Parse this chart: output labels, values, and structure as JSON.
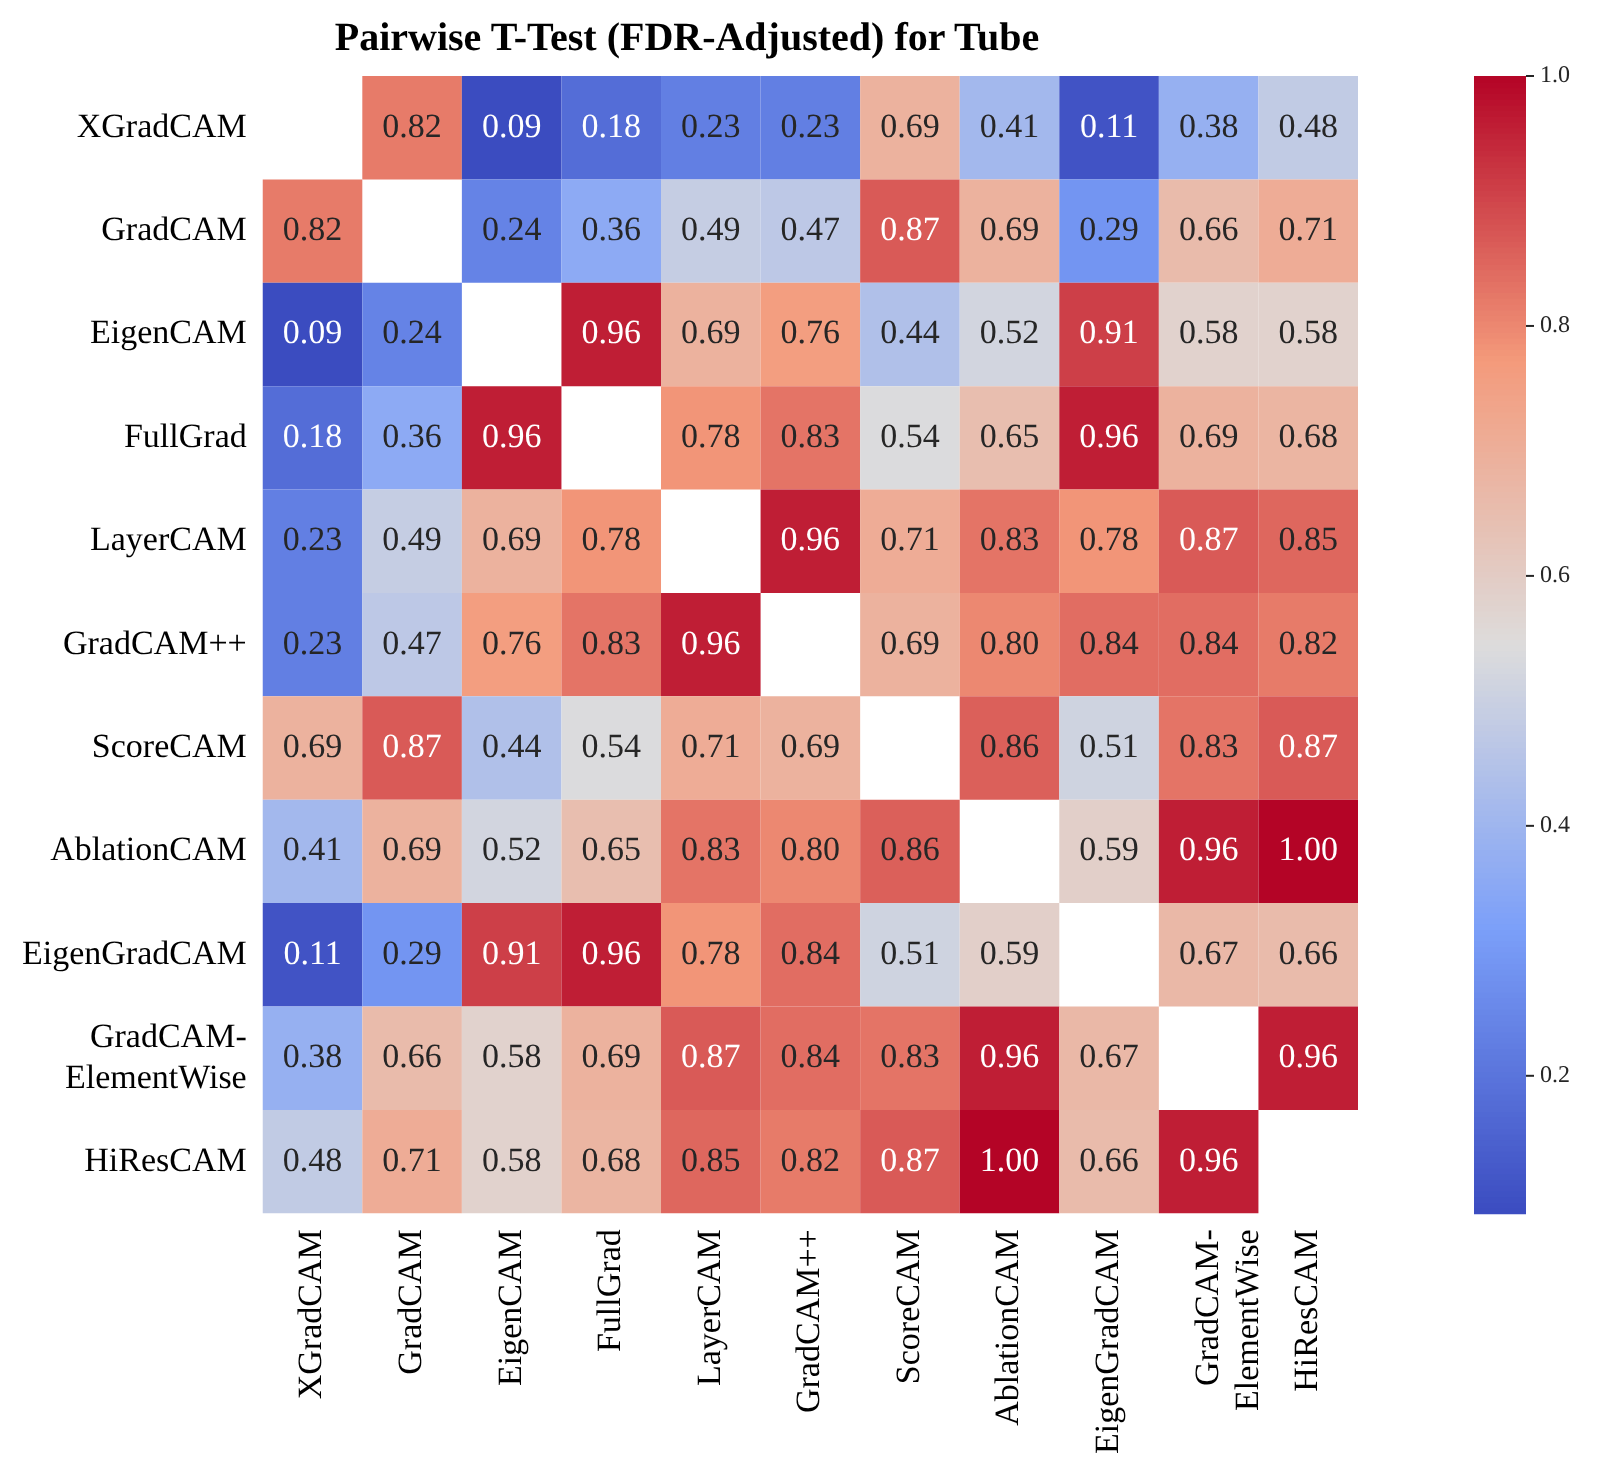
{
  "chart_data": {
    "type": "heatmap",
    "title": "Pairwise T-Test (FDR-Adjusted) for Tube",
    "categories": [
      "XGradCAM",
      "GradCAM",
      "EigenCAM",
      "FullGrad",
      "LayerCAM",
      "GradCAM++",
      "ScoreCAM",
      "AblationCAM",
      "EigenGradCAM",
      "GradCAM-ElementWise",
      "HiResCAM"
    ],
    "y_categories": [
      "XGradCAM",
      "GradCAM",
      "EigenCAM",
      "FullGrad",
      "LayerCAM",
      "GradCAM++",
      "ScoreCAM",
      "AblationCAM",
      "EigenGradCAM",
      "GradCAM-ElementWise",
      "HiResCAM"
    ],
    "cells": [
      [
        null,
        0.82,
        0.09,
        0.18,
        0.23,
        0.23,
        0.69,
        0.41,
        0.11,
        0.38,
        0.48
      ],
      [
        0.82,
        null,
        0.24,
        0.36,
        0.49,
        0.47,
        0.87,
        0.69,
        0.29,
        0.66,
        0.71
      ],
      [
        0.09,
        0.24,
        null,
        0.96,
        0.69,
        0.76,
        0.44,
        0.52,
        0.91,
        0.58,
        0.58
      ],
      [
        0.18,
        0.36,
        0.96,
        null,
        0.78,
        0.83,
        0.54,
        0.65,
        0.96,
        0.69,
        0.68
      ],
      [
        0.23,
        0.49,
        0.69,
        0.78,
        null,
        0.96,
        0.71,
        0.83,
        0.78,
        0.87,
        0.85
      ],
      [
        0.23,
        0.47,
        0.76,
        0.83,
        0.96,
        null,
        0.69,
        0.8,
        0.84,
        0.84,
        0.82
      ],
      [
        0.69,
        0.87,
        0.44,
        0.54,
        0.71,
        0.69,
        null,
        0.86,
        0.51,
        0.83,
        0.87
      ],
      [
        0.41,
        0.69,
        0.52,
        0.65,
        0.83,
        0.8,
        0.86,
        null,
        0.59,
        0.96,
        1.0
      ],
      [
        0.11,
        0.29,
        0.91,
        0.96,
        0.78,
        0.84,
        0.51,
        0.59,
        null,
        0.67,
        0.66
      ],
      [
        0.38,
        0.66,
        0.58,
        0.69,
        0.87,
        0.84,
        0.83,
        0.96,
        0.67,
        null,
        0.96
      ],
      [
        0.48,
        0.71,
        0.58,
        0.68,
        0.85,
        0.82,
        0.87,
        1.0,
        0.66,
        0.96,
        null
      ]
    ],
    "cell_labels": [
      [
        null,
        "0.82",
        "0.09",
        "0.18",
        "0.23",
        "0.23",
        "0.69",
        "0.41",
        "0.11",
        "0.38",
        "0.48"
      ],
      [
        "0.82",
        null,
        "0.24",
        "0.36",
        "0.49",
        "0.47",
        "0.87",
        "0.69",
        "0.29",
        "0.66",
        "0.71"
      ],
      [
        "0.09",
        "0.24",
        null,
        "0.96",
        "0.69",
        "0.76",
        "0.44",
        "0.52",
        "0.91",
        "0.58",
        "0.58"
      ],
      [
        "0.18",
        "0.36",
        "0.96",
        null,
        "0.78",
        "0.83",
        "0.54",
        "0.65",
        "0.96",
        "0.69",
        "0.68"
      ],
      [
        "0.23",
        "0.49",
        "0.69",
        "0.78",
        null,
        "0.96",
        "0.71",
        "0.83",
        "0.78",
        "0.87",
        "0.85"
      ],
      [
        "0.23",
        "0.47",
        "0.76",
        "0.83",
        "0.96",
        null,
        "0.69",
        "0.80",
        "0.84",
        "0.84",
        "0.82"
      ],
      [
        "0.69",
        "0.87",
        "0.44",
        "0.54",
        "0.71",
        "0.69",
        null,
        "0.86",
        "0.51",
        "0.83",
        "0.87"
      ],
      [
        "0.41",
        "0.69",
        "0.52",
        "0.65",
        "0.83",
        "0.80",
        "0.86",
        null,
        "0.59",
        "0.96",
        "1.00"
      ],
      [
        "0.11",
        "0.29",
        "0.91",
        "0.96",
        "0.78",
        "0.84",
        "0.51",
        "0.59",
        null,
        "0.67",
        "0.66"
      ],
      [
        "0.38",
        "0.66",
        "0.58",
        "0.69",
        "0.87",
        "0.84",
        "0.83",
        "0.96",
        "0.67",
        null,
        "0.96"
      ],
      [
        "0.48",
        "0.71",
        "0.58",
        "0.68",
        "0.85",
        "0.82",
        "0.87",
        "1.00",
        "0.66",
        "0.96",
        null
      ]
    ],
    "clim": [
      0.09,
      1.0
    ],
    "cticks": [
      0.2,
      0.4,
      0.6,
      0.8,
      {
        "value": 1,
        "label": "1.0"
      }
    ]
  }
}
